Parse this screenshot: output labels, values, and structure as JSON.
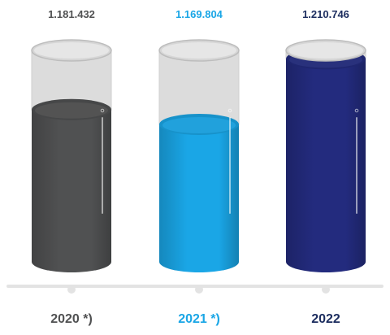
{
  "chart_data": {
    "type": "bar",
    "categories": [
      "2020 *)",
      "2021 *)",
      "2022"
    ],
    "values": [
      1181432,
      1169804,
      1210746
    ],
    "value_labels": [
      "1.181.432",
      "1.169.804",
      "1.210.746"
    ],
    "colors": {
      "bars": [
        "#505152",
        "#1aa6e6",
        "#232b7e"
      ],
      "labels": [
        "#505152",
        "#1aa6e6",
        "#1b2c5e"
      ],
      "glass": "#dcdcdc",
      "baseline": "#e3e3e3"
    },
    "fill_levels": [
      0.72,
      0.65,
      0.96
    ],
    "grid": false,
    "legend": "none"
  }
}
